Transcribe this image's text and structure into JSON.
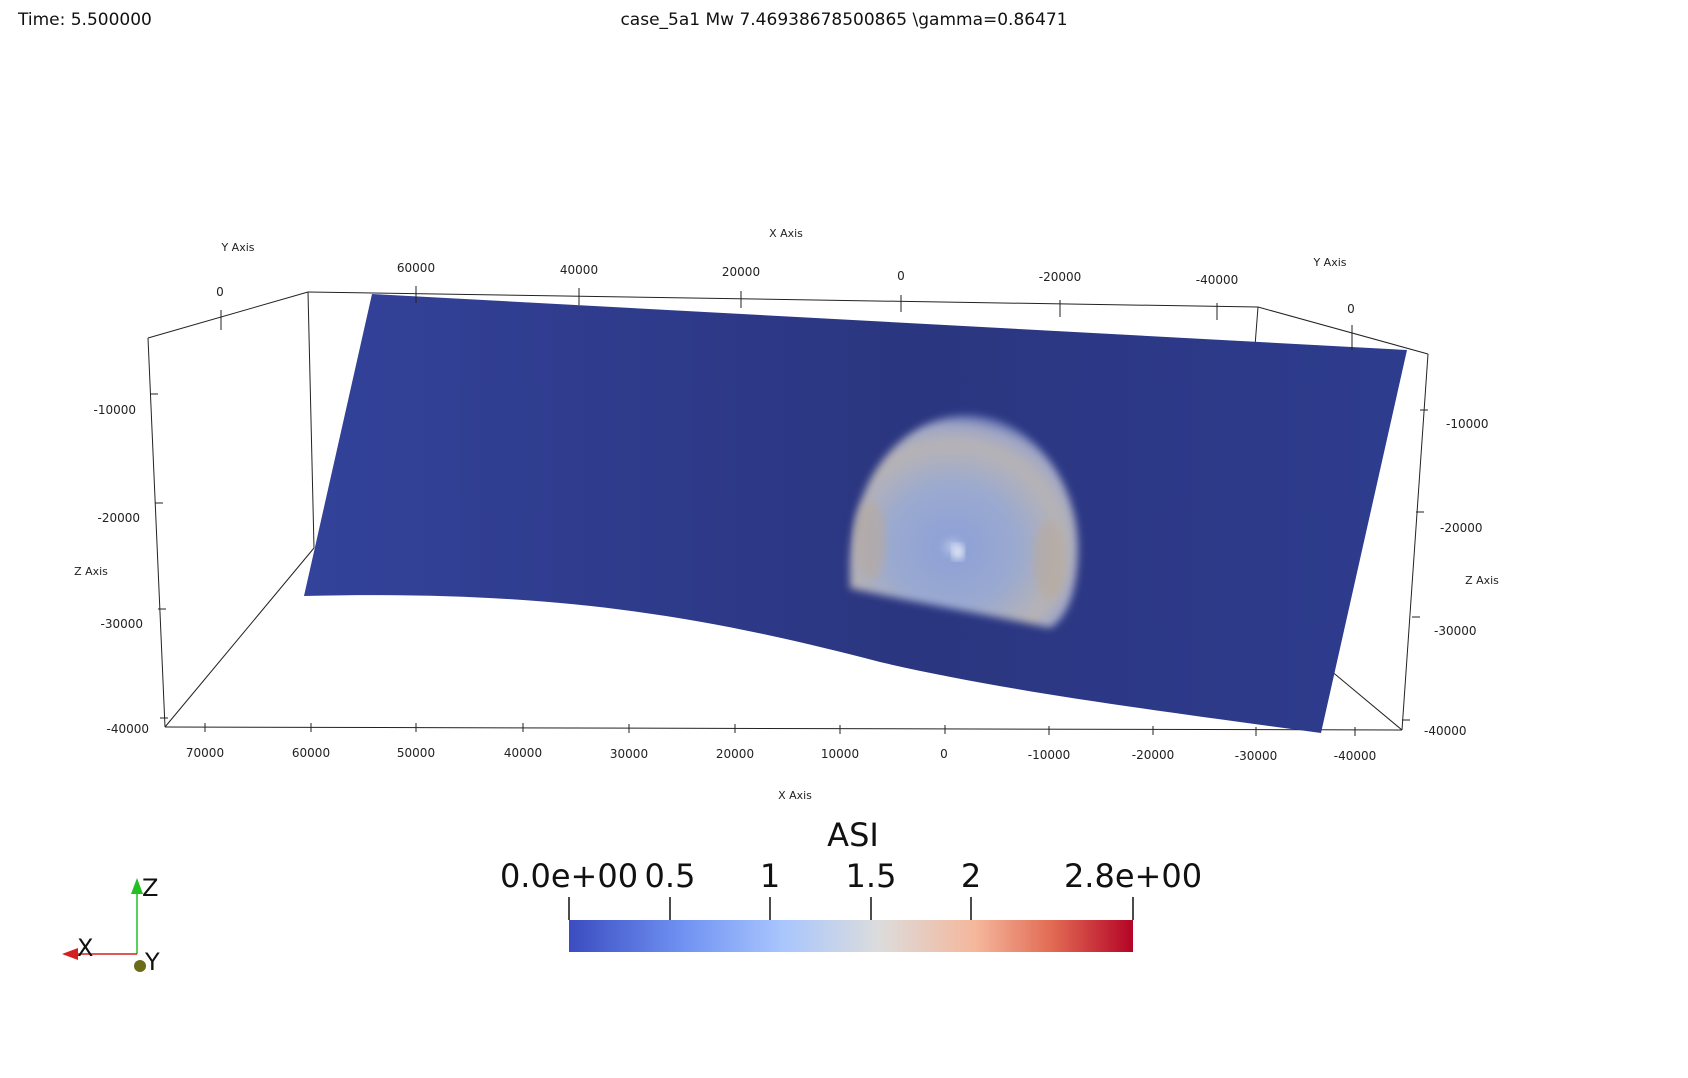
{
  "hud": {
    "time": "Time: 5.500000",
    "title": "case_5a1 Mw 7.46938678500865  \\gamma=0.86471"
  },
  "axes": {
    "x_title_top": "X Axis",
    "x_title_bottom": "X Axis",
    "y_title_left": "Y Axis",
    "y_title_right": "Y Axis",
    "z_title_left": "Z Axis",
    "z_title_right": "Z Axis",
    "top_x_ticks": [
      "60000",
      "40000",
      "20000",
      "0",
      "-20000",
      "-40000"
    ],
    "top_y_left_tick": "0",
    "top_y_right_tick": "0",
    "left_z_ticks": [
      "-10000",
      "-20000",
      "-30000",
      "-40000"
    ],
    "right_z_ticks": [
      "-10000",
      "-20000",
      "-30000",
      "-40000"
    ],
    "bottom_x_ticks": [
      "70000",
      "60000",
      "50000",
      "40000",
      "30000",
      "20000",
      "10000",
      "0",
      "-10000",
      "-20000",
      "-30000",
      "-40000"
    ]
  },
  "colorbar": {
    "title": "ASI",
    "labels": [
      "0.0e+00",
      "0.5",
      "1",
      "1.5",
      "2",
      "2.8e+00"
    ],
    "range": [
      0.0,
      2.8
    ],
    "colors": [
      "#3b4cc0",
      "#8db0fe",
      "#dddddd",
      "#f49a7b",
      "#b40426"
    ]
  },
  "orientation": {
    "x_label": "X",
    "y_label": "Y",
    "z_label": "Z"
  },
  "colors": {
    "fault_surface": "#2d3a8c",
    "x_axis": "#d42020",
    "y_axis": "#6b6b1a",
    "z_axis": "#22c022"
  }
}
